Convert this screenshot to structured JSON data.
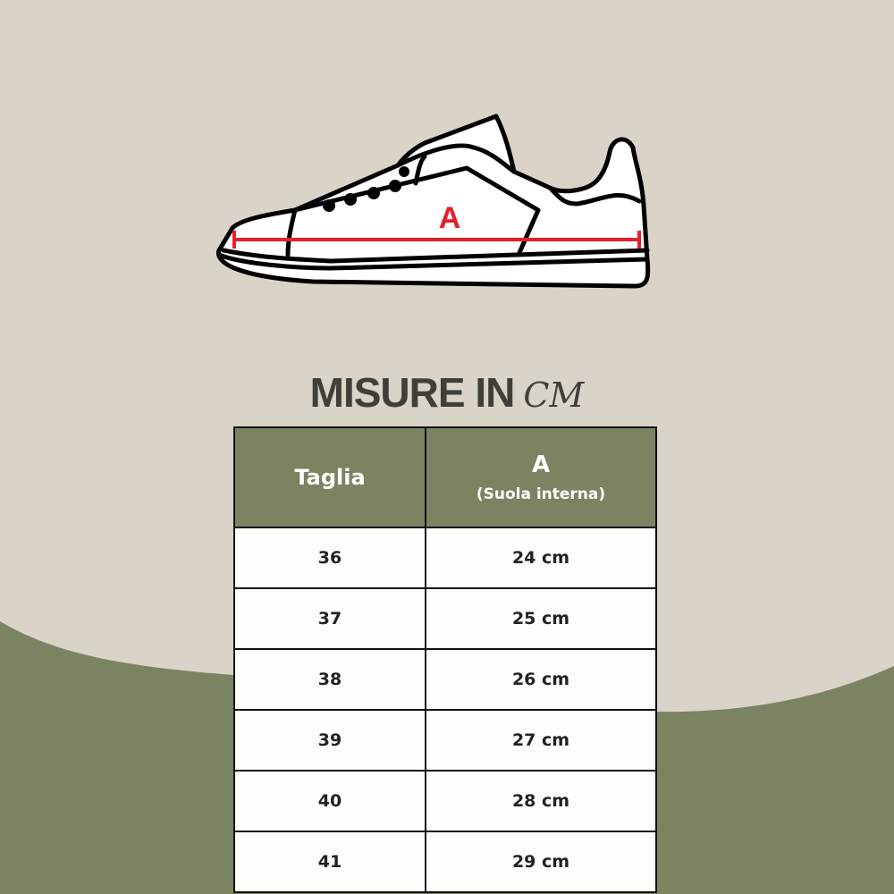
{
  "diagram": {
    "measure_label": "A",
    "measure_color": "#e4202a"
  },
  "title": {
    "text": "MISURE IN",
    "unit": "CM"
  },
  "table": {
    "headers": {
      "size": "Taglia",
      "measure": "A",
      "measure_sub": "(Suola interna)"
    },
    "rows": [
      {
        "size": "36",
        "length": "24 cm"
      },
      {
        "size": "37",
        "length": "25 cm"
      },
      {
        "size": "38",
        "length": "26 cm"
      },
      {
        "size": "39",
        "length": "27 cm"
      },
      {
        "size": "40",
        "length": "28 cm"
      },
      {
        "size": "41",
        "length": "29 cm"
      }
    ]
  },
  "colors": {
    "background": "#d9d3c8",
    "accent_green": "#7a8461",
    "title": "#3f3f3a"
  }
}
